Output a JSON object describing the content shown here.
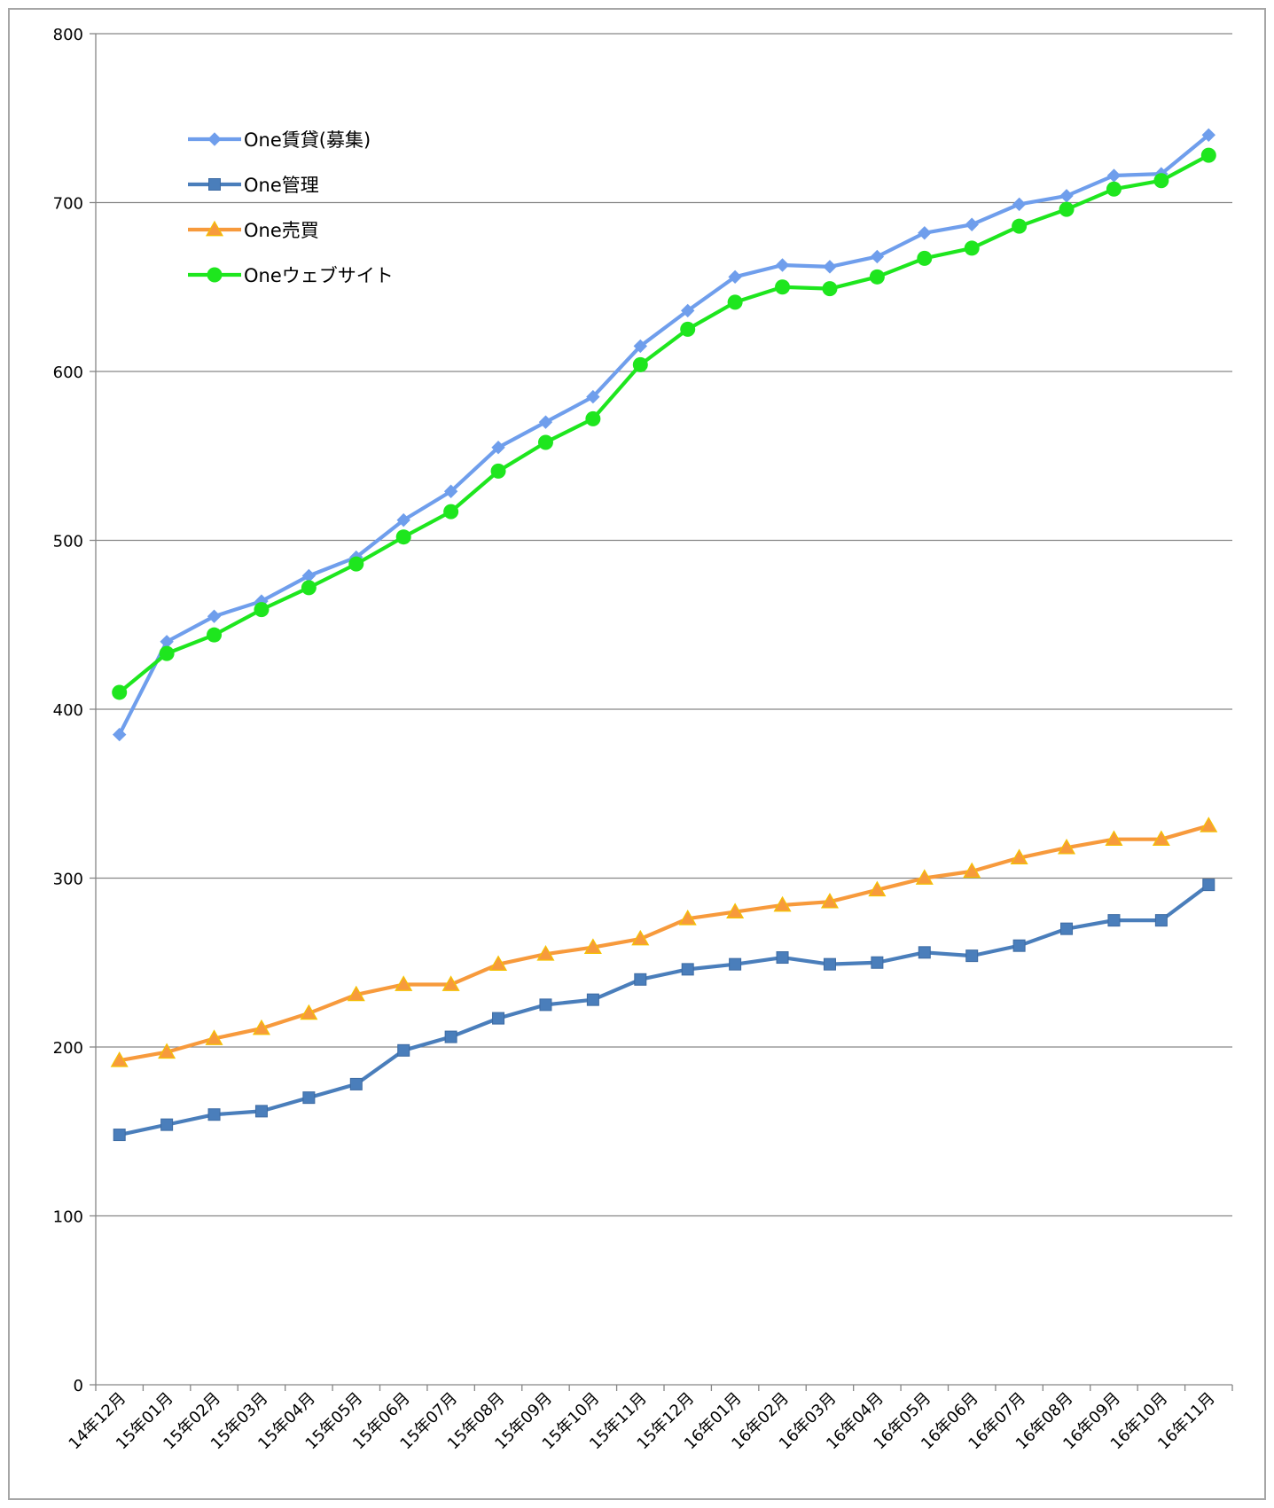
{
  "chart_data": {
    "type": "line",
    "categories": [
      "14年12月",
      "15年01月",
      "15年02月",
      "15年03月",
      "15年04月",
      "15年05月",
      "15年06月",
      "15年07月",
      "15年08月",
      "15年09月",
      "15年10月",
      "15年11月",
      "15年12月",
      "16年01月",
      "16年02月",
      "16年03月",
      "16年04月",
      "16年05月",
      "16年06月",
      "16年07月",
      "16年08月",
      "16年09月",
      "16年10月",
      "16年11月"
    ],
    "ylim": [
      0,
      800
    ],
    "yticks": [
      0,
      100,
      200,
      300,
      400,
      500,
      600,
      700,
      800
    ],
    "grid": true,
    "legend_position": "top-left",
    "series": [
      {
        "name": "One賃貸(募集)",
        "color": "#6f9eec",
        "marker": "diamond",
        "values": [
          385,
          440,
          455,
          464,
          479,
          490,
          512,
          529,
          555,
          570,
          585,
          615,
          636,
          656,
          663,
          662,
          668,
          682,
          687,
          699,
          704,
          716,
          717,
          740
        ]
      },
      {
        "name": "One管理",
        "color": "#4a7ebb",
        "marker": "square",
        "values": [
          148,
          154,
          160,
          162,
          170,
          178,
          198,
          206,
          217,
          225,
          228,
          240,
          246,
          249,
          253,
          249,
          250,
          256,
          254,
          260,
          270,
          275,
          275,
          296
        ]
      },
      {
        "name": "One売買",
        "color": "#f79a3c",
        "marker": "triangle",
        "values": [
          192,
          197,
          205,
          211,
          220,
          231,
          237,
          237,
          249,
          255,
          259,
          264,
          276,
          280,
          284,
          286,
          293,
          300,
          304,
          312,
          318,
          323,
          323,
          331
        ]
      },
      {
        "name": "Oneウェブサイト",
        "color": "#1ee61e",
        "marker": "circle",
        "values": [
          410,
          433,
          444,
          459,
          472,
          486,
          502,
          517,
          541,
          558,
          572,
          604,
          625,
          641,
          650,
          649,
          656,
          667,
          673,
          686,
          696,
          708,
          713,
          728
        ]
      }
    ]
  }
}
